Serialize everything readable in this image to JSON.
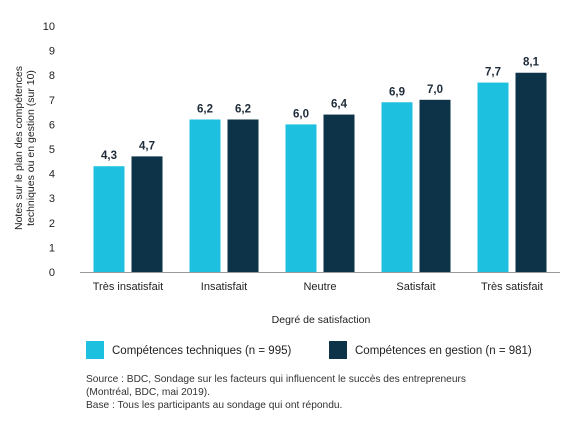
{
  "chart_data": {
    "type": "bar",
    "categories": [
      "Très insatisfait",
      "Insatisfait",
      "Neutre",
      "Satisfait",
      "Très satisfait"
    ],
    "series": [
      {
        "name": "Compétences techniques (n = 995)",
        "values": [
          4.3,
          6.2,
          6.0,
          6.9,
          7.7
        ],
        "labels": [
          "4,3",
          "6,2",
          "6,0",
          "6,9",
          "7,7"
        ],
        "color": "#1ec0e0"
      },
      {
        "name": "Compétences en gestion (n = 981)",
        "values": [
          4.7,
          6.2,
          6.4,
          7.0,
          8.1
        ],
        "labels": [
          "4,7",
          "6,2",
          "6,4",
          "7,0",
          "8,1"
        ],
        "color": "#0d3349"
      }
    ],
    "y_ticks": [
      "0",
      "1",
      "2",
      "3",
      "4",
      "5",
      "6",
      "7",
      "8",
      "9",
      "10"
    ],
    "ylim": [
      0,
      10
    ],
    "xlabel": "Degré de satisfaction",
    "ylabel_lines": [
      "Notes sur le plan des compétences",
      "techniques ou en gestion (sur 10)"
    ],
    "grid": false,
    "legend_position": "bottom"
  },
  "source": {
    "line1": "Source : BDC, Sondage sur les facteurs qui influencent le succès des entrepreneurs",
    "line2": "(Montréal, BDC, mai 2019).",
    "line3": "Base : Tous les participants au sondage qui ont répondu."
  }
}
